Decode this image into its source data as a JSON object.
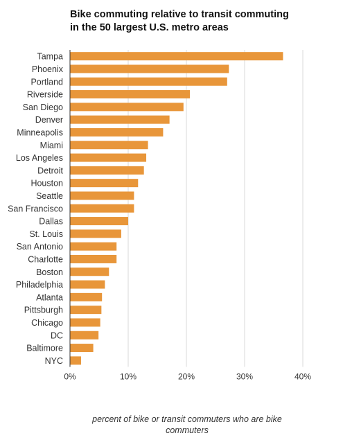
{
  "chart_data": {
    "type": "bar",
    "orientation": "horizontal",
    "title_lines": [
      "Bike commuting relative to transit commuting",
      "in the 50 largest U.S. metro areas"
    ],
    "xlabel": "percent of bike or transit commuters who are bike commuters",
    "ylabel": "",
    "categories": [
      "Tampa",
      "Phoenix",
      "Portland",
      "Riverside",
      "San Diego",
      "Denver",
      "Minneapolis",
      "Miami",
      "Los Angeles",
      "Detroit",
      "Houston",
      "Seattle",
      "San Francisco",
      "Dallas",
      "St. Louis",
      "San Antonio",
      "Charlotte",
      "Boston",
      "Philadelphia",
      "Atlanta",
      "Pittsburgh",
      "Chicago",
      "DC",
      "Baltimore",
      "NYC"
    ],
    "values": [
      36.6,
      27.3,
      27.0,
      20.6,
      19.5,
      17.1,
      16.0,
      13.4,
      13.1,
      12.7,
      11.7,
      11.0,
      11.0,
      10.0,
      8.8,
      8.0,
      8.0,
      6.7,
      6.0,
      5.5,
      5.4,
      5.2,
      4.9,
      4.0,
      1.9
    ],
    "xlim": [
      0,
      40
    ],
    "ticks": [
      0,
      10,
      20,
      30,
      40
    ],
    "tick_labels": [
      "0%",
      "10%",
      "20%",
      "30%",
      "40%"
    ],
    "grid": true,
    "bar_color": "#e8963a",
    "grid_color": "#d9d9d9",
    "axis_color": "#333333"
  }
}
